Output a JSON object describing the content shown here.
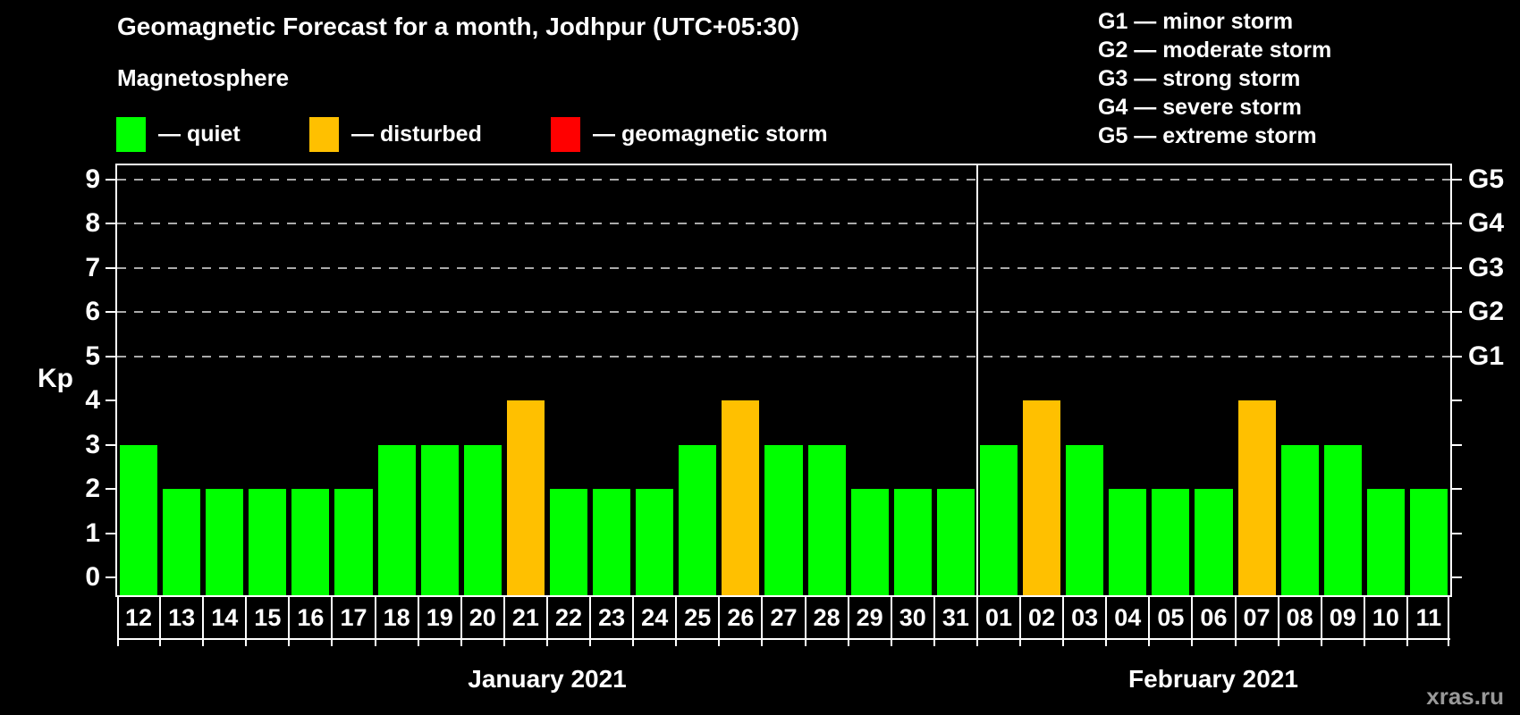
{
  "title": "Geomagnetic Forecast for a month, Jodhpur (UTC+05:30)",
  "subtitle": "Magnetosphere",
  "legend": {
    "items": [
      {
        "key": "quiet",
        "label": "— quiet",
        "color": "#00ff00"
      },
      {
        "key": "disturbed",
        "label": "— disturbed",
        "color": "#ffc000"
      },
      {
        "key": "storm",
        "label": "— geomagnetic storm",
        "color": "#ff0000"
      }
    ]
  },
  "g_legend": [
    "G1 — minor storm",
    "G2 — moderate storm",
    "G3 — strong storm",
    "G4 — severe storm",
    "G5 — extreme storm"
  ],
  "y_axis": {
    "label": "Kp",
    "ticks": [
      0,
      1,
      2,
      3,
      4,
      5,
      6,
      7,
      8,
      9
    ]
  },
  "right_axis": {
    "labels": [
      {
        "text": "G1",
        "kp": 5
      },
      {
        "text": "G2",
        "kp": 6
      },
      {
        "text": "G3",
        "kp": 7
      },
      {
        "text": "G4",
        "kp": 8
      },
      {
        "text": "G5",
        "kp": 9
      }
    ]
  },
  "months": [
    {
      "label": "January 2021",
      "days": 20
    },
    {
      "label": "February 2021",
      "days": 11
    }
  ],
  "watermark": "xras.ru",
  "chart_data": {
    "type": "bar",
    "title": "Geomagnetic Forecast for a month, Jodhpur (UTC+05:30)",
    "ylabel": "Kp",
    "ylim": [
      0,
      9.4
    ],
    "gridlines_at": [
      5,
      6,
      7,
      8,
      9
    ],
    "grid_style": "dashed",
    "categories": [
      "12",
      "13",
      "14",
      "15",
      "16",
      "17",
      "18",
      "19",
      "20",
      "21",
      "22",
      "23",
      "24",
      "25",
      "26",
      "27",
      "28",
      "29",
      "30",
      "31",
      "01",
      "02",
      "03",
      "04",
      "05",
      "06",
      "07",
      "08",
      "09",
      "10",
      "11"
    ],
    "values": [
      3,
      2,
      2,
      2,
      2,
      2,
      3,
      3,
      3,
      4,
      2,
      2,
      2,
      3,
      4,
      3,
      3,
      2,
      2,
      2,
      3,
      4,
      3,
      2,
      2,
      2,
      4,
      3,
      3,
      2,
      2
    ],
    "status": [
      "quiet",
      "quiet",
      "quiet",
      "quiet",
      "quiet",
      "quiet",
      "quiet",
      "quiet",
      "quiet",
      "disturbed",
      "quiet",
      "quiet",
      "quiet",
      "quiet",
      "disturbed",
      "quiet",
      "quiet",
      "quiet",
      "quiet",
      "quiet",
      "quiet",
      "disturbed",
      "quiet",
      "quiet",
      "quiet",
      "quiet",
      "disturbed",
      "quiet",
      "quiet",
      "quiet",
      "quiet"
    ],
    "month_of_bar_split_index": 20,
    "colors": {
      "quiet": "#00ff00",
      "disturbed": "#ffc000",
      "storm": "#ff0000"
    }
  }
}
